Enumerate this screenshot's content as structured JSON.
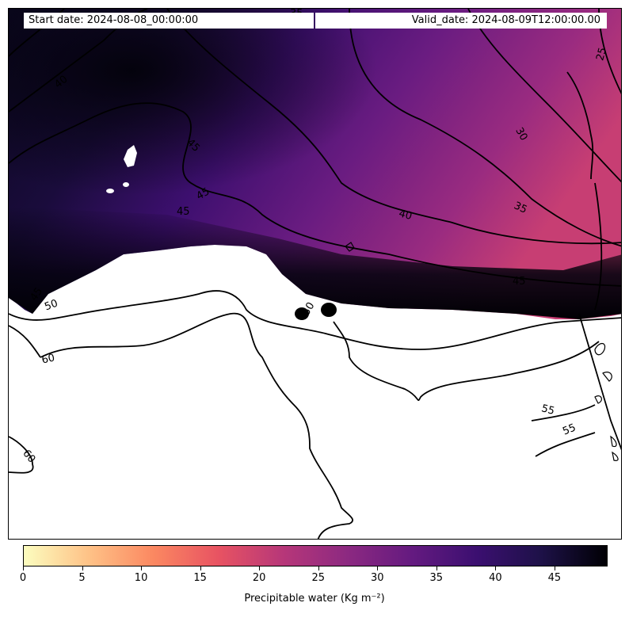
{
  "header": {
    "start_date": "Start date: 2024-08-08_00:00:00",
    "valid_date": "Valid_date: 2024-08-09T12:00:00.00"
  },
  "colorbar": {
    "label": "Precipitable water (Kg m⁻²)",
    "ticks": [
      "0",
      "5",
      "10",
      "15",
      "20",
      "25",
      "30",
      "35",
      "40",
      "45"
    ],
    "min": 0,
    "max": 49.5,
    "colormap": "magma_r",
    "colors": [
      "#fcfdbf",
      "#fec287",
      "#fb8861",
      "#e85362",
      "#b73779",
      "#8c2981",
      "#641a80",
      "#3b0f70",
      "#1d1147",
      "#000004"
    ]
  },
  "contour_labels": [
    "25",
    "30",
    "35",
    "35",
    "40",
    "40",
    "45",
    "45",
    "45",
    "45",
    "45",
    "50",
    "50",
    "55",
    "55",
    "60",
    "60"
  ]
}
